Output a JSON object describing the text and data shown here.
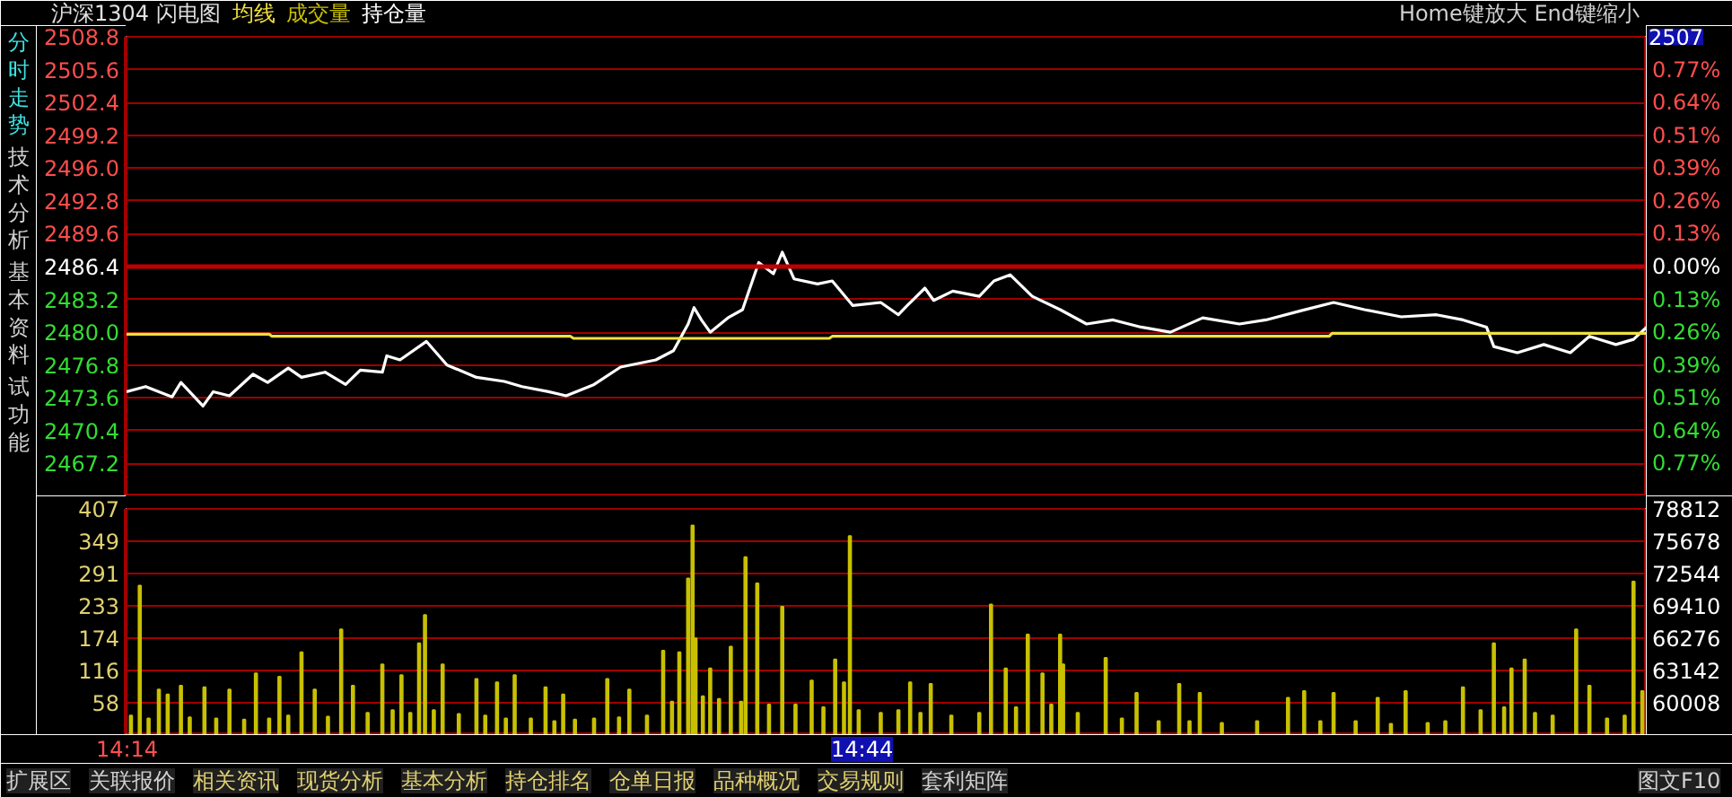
{
  "chart_data": [
    {
      "type": "line",
      "title": "沪深1304 闪电图",
      "series": [
        {
          "type": "line",
          "color": "#ffffff",
          "x": [
            14.233,
            14.246,
            14.264,
            14.27,
            14.285,
            14.292,
            14.303,
            14.319,
            14.329,
            14.343,
            14.352,
            14.368,
            14.382,
            14.392,
            14.407,
            14.41,
            14.419,
            14.437,
            14.451,
            14.471,
            14.49,
            14.502,
            14.52,
            14.532,
            14.551,
            14.569,
            14.593,
            14.605,
            14.615,
            14.619,
            14.624,
            14.63,
            14.642,
            14.652,
            14.657,
            14.663,
            14.673,
            14.679,
            14.687,
            14.703,
            14.713,
            14.727,
            14.746,
            14.758,
            14.764,
            14.776,
            14.782,
            14.795,
            14.813,
            14.823,
            14.834,
            14.849,
            14.868,
            14.886,
            14.904,
            14.923,
            14.943,
            14.965,
            14.99,
            15.008,
            15.032,
            15.054,
            15.075,
            15.1,
            15.124,
            15.142,
            15.158,
            15.163,
            15.179,
            15.197,
            15.215,
            15.228,
            15.246,
            15.258,
            15.267
          ],
          "values": [
            2474.2,
            2474.7,
            2473.7,
            2475.1,
            2472.8,
            2474.2,
            2473.8,
            2475.9,
            2475.1,
            2476.5,
            2475.6,
            2476.1,
            2474.9,
            2476.3,
            2476.1,
            2477.7,
            2477.3,
            2479.1,
            2476.8,
            2475.6,
            2475.2,
            2474.7,
            2474.2,
            2473.8,
            2474.9,
            2476.6,
            2477.3,
            2478.2,
            2480.8,
            2482.4,
            2481.2,
            2480.0,
            2481.4,
            2482.2,
            2484.3,
            2486.8,
            2485.7,
            2487.8,
            2485.2,
            2484.7,
            2485.0,
            2482.6,
            2482.9,
            2481.7,
            2482.6,
            2484.3,
            2483.1,
            2484.0,
            2483.5,
            2485.0,
            2485.6,
            2483.5,
            2482.2,
            2480.8,
            2481.2,
            2480.5,
            2480.0,
            2481.4,
            2480.8,
            2481.2,
            2482.1,
            2482.9,
            2482.2,
            2481.5,
            2481.7,
            2481.2,
            2480.5,
            2478.6,
            2478.0,
            2478.8,
            2478.0,
            2479.6,
            2478.8,
            2479.3,
            2480.5
          ]
        },
        {
          "type": "line",
          "name": "均线",
          "color": "#f0e040",
          "x": [
            14.233,
            14.33,
            14.332,
            14.535,
            14.537,
            14.711,
            14.713,
            15.051,
            15.053,
            15.267
          ],
          "values": [
            2479.8,
            2479.8,
            2479.6,
            2479.6,
            2479.4,
            2479.4,
            2479.6,
            2479.6,
            2479.9,
            2479.9
          ]
        }
      ],
      "xlim": [
        14.233,
        15.267
      ],
      "ylim": [
        2464.0,
        2508.8
      ],
      "yticks": [
        2467.2,
        2470.4,
        2473.6,
        2476.8,
        {
          "value": 2480,
          "label": "2480.0"
        },
        2483.2,
        2486.4,
        2489.6,
        2492.8,
        {
          "value": 2496,
          "label": "2496.0"
        },
        2499.2,
        2502.4,
        2505.6,
        2508.8
      ],
      "y2lim": [
        -0.901,
        0.901
      ],
      "y2ticks": [
        {
          "value": -0.772,
          "label": "0.77%"
        },
        {
          "value": -0.644,
          "label": "0.64%"
        },
        {
          "value": -0.515,
          "label": "0.51%"
        },
        {
          "value": -0.386,
          "label": "0.39%"
        },
        {
          "value": -0.257,
          "label": "0.26%"
        },
        {
          "value": -0.129,
          "label": "0.13%"
        },
        {
          "value": 0,
          "label": "0.00%"
        },
        {
          "value": 0.129,
          "label": "0.13%"
        },
        {
          "value": 0.257,
          "label": "0.26%"
        },
        {
          "value": 0.386,
          "label": "0.39%"
        },
        {
          "value": 0.515,
          "label": "0.51%"
        },
        {
          "value": 0.644,
          "label": "0.64%"
        },
        {
          "value": 0.772,
          "label": "0.77%"
        }
      ],
      "ref_lines": [
        {
          "axis": "y",
          "value": 2486.4,
          "color": "#c00000"
        }
      ],
      "grid": "y",
      "legend": "top left",
      "tick_labels": "y",
      "annotations": [
        "Home键放大 End键缩小",
        "2507",
        "分时走势",
        "技术分析",
        "基本资料",
        "试功能"
      ]
    },
    {
      "type": "bar",
      "series": [
        {
          "name": "成交量",
          "color": "#c8c000",
          "x": [
            14.236,
            14.242,
            14.248,
            14.255,
            14.261,
            14.27,
            14.276,
            14.286,
            14.294,
            14.303,
            14.313,
            14.321,
            14.33,
            14.337,
            14.343,
            14.352,
            14.361,
            14.37,
            14.379,
            14.387,
            14.397,
            14.407,
            14.414,
            14.42,
            14.426,
            14.432,
            14.436,
            14.442,
            14.448,
            14.459,
            14.471,
            14.477,
            14.485,
            14.491,
            14.497,
            14.508,
            14.518,
            14.524,
            14.53,
            14.538,
            14.551,
            14.56,
            14.568,
            14.575,
            14.587,
            14.598,
            14.604,
            14.609,
            14.615,
            14.618,
            14.62,
            14.625,
            14.63,
            14.636,
            14.644,
            14.651,
            14.654,
            14.662,
            14.67,
            14.679,
            14.688,
            14.699,
            14.707,
            14.715,
            14.721,
            14.725,
            14.731,
            14.746,
            14.758,
            14.766,
            14.773,
            14.78,
            14.794,
            14.813,
            14.821,
            14.831,
            14.838,
            14.846,
            14.856,
            14.862,
            14.868,
            14.87,
            14.88,
            14.899,
            14.91,
            14.92,
            14.935,
            14.949,
            14.956,
            14.963,
            14.978,
            15.002,
            15.023,
            15.034,
            15.045,
            15.054,
            15.069,
            15.084,
            15.093,
            15.103,
            15.118,
            15.13,
            15.142,
            15.154,
            15.163,
            15.17,
            15.175,
            15.184,
            15.191,
            15.203,
            15.219,
            15.228,
            15.24,
            15.252,
            15.258,
            15.264
          ],
          "values": [
            35,
            269,
            30,
            82,
            73,
            89,
            32,
            86,
            30,
            82,
            28,
            111,
            30,
            105,
            35,
            149,
            82,
            33,
            190,
            89,
            40,
            127,
            45,
            108,
            40,
            165,
            216,
            45,
            127,
            38,
            101,
            35,
            95,
            30,
            108,
            30,
            86,
            25,
            73,
            28,
            30,
            101,
            32,
            82,
            35,
            152,
            60,
            149,
            282,
            377,
            174,
            70,
            120,
            65,
            159,
            60,
            320,
            273,
            55,
            231,
            55,
            98,
            50,
            136,
            95,
            358,
            45,
            40,
            45,
            95,
            40,
            92,
            35,
            40,
            235,
            120,
            50,
            181,
            111,
            55,
            181,
            127,
            40,
            139,
            30,
            76,
            25,
            92,
            25,
            76,
            22,
            25,
            67,
            79,
            25,
            76,
            25,
            67,
            20,
            79,
            22,
            25,
            86,
            45,
            165,
            50,
            120,
            136,
            40,
            35,
            190,
            89,
            30,
            35,
            276,
            79
          ]
        }
      ],
      "xlim": [
        14.233,
        15.267
      ],
      "ylim": [
        0,
        407
      ],
      "xticks": [
        {
          "value": 14.2333,
          "label": "14:14"
        },
        {
          "value": 14.7333,
          "label": "14:44"
        }
      ],
      "yticks": [
        58,
        116,
        174,
        233,
        291,
        349,
        407
      ],
      "y2lim": [
        56874,
        78812
      ],
      "y2ticks": [
        60008,
        63142,
        66276,
        69410,
        72544,
        75678,
        78812
      ],
      "grid": "y",
      "annotations": [
        "持仓量",
        "扩展区",
        "关联报价",
        "相关资讯",
        "现货分析",
        "基本分析",
        "持仓排名",
        "仓单日报",
        "品种概况",
        "交易规则",
        "套利矩阵",
        "图文F10"
      ]
    }
  ]
}
